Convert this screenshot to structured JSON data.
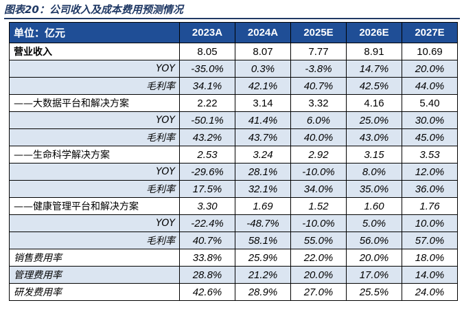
{
  "caption": "图表20：公司收入及成本费用预测情况",
  "table": {
    "header": [
      "单位：亿元",
      "2023A",
      "2024A",
      "2025E",
      "2026E",
      "2027E"
    ],
    "rows": [
      {
        "label": "营业收入",
        "values": [
          "8.05",
          "8.07",
          "7.77",
          "8.91",
          "10.69"
        ]
      },
      {
        "label": "YOY",
        "values": [
          "-35.0%",
          "0.3%",
          "-3.8%",
          "14.7%",
          "20.0%"
        ]
      },
      {
        "label": "毛利率",
        "values": [
          "34.1%",
          "42.1%",
          "40.7%",
          "42.5%",
          "44.0%"
        ]
      },
      {
        "label": "——大数据平台和解决方案",
        "values": [
          "2.22",
          "3.14",
          "3.32",
          "4.16",
          "5.40"
        ]
      },
      {
        "label": "YOY",
        "values": [
          "-50.1%",
          "41.4%",
          "6.0%",
          "25.0%",
          "30.0%"
        ]
      },
      {
        "label": "毛利率",
        "values": [
          "43.2%",
          "43.7%",
          "40.0%",
          "43.0%",
          "45.0%"
        ]
      },
      {
        "label": "——生命科学解决方案",
        "values": [
          "2.53",
          "3.24",
          "2.92",
          "3.15",
          "3.53"
        ]
      },
      {
        "label": "YOY",
        "values": [
          "-29.6%",
          "28.1%",
          "-10.0%",
          "8.0%",
          "12.0%"
        ]
      },
      {
        "label": "毛利率",
        "values": [
          "17.5%",
          "32.1%",
          "34.0%",
          "35.0%",
          "36.0%"
        ]
      },
      {
        "label": "——健康管理平台和解决方案",
        "values": [
          "3.30",
          "1.69",
          "1.52",
          "1.60",
          "1.76"
        ]
      },
      {
        "label": "YOY",
        "values": [
          "-22.4%",
          "-48.7%",
          "-10.0%",
          "5.0%",
          "10.0%"
        ]
      },
      {
        "label": "毛利率",
        "values": [
          "40.7%",
          "58.1%",
          "55.0%",
          "56.0%",
          "57.0%"
        ]
      },
      {
        "label": "销售费用率",
        "values": [
          "33.8%",
          "25.9%",
          "22.0%",
          "20.0%",
          "18.0%"
        ]
      },
      {
        "label": "管理费用率",
        "values": [
          "28.8%",
          "21.2%",
          "20.0%",
          "17.0%",
          "14.0%"
        ]
      },
      {
        "label": "研发费用率",
        "values": [
          "42.6%",
          "28.9%",
          "27.0%",
          "25.5%",
          "24.0%"
        ]
      }
    ]
  },
  "colors": {
    "header_bg": "#1f4e96",
    "band_bg": "#dbe5f1",
    "caption": "#1f3864"
  }
}
